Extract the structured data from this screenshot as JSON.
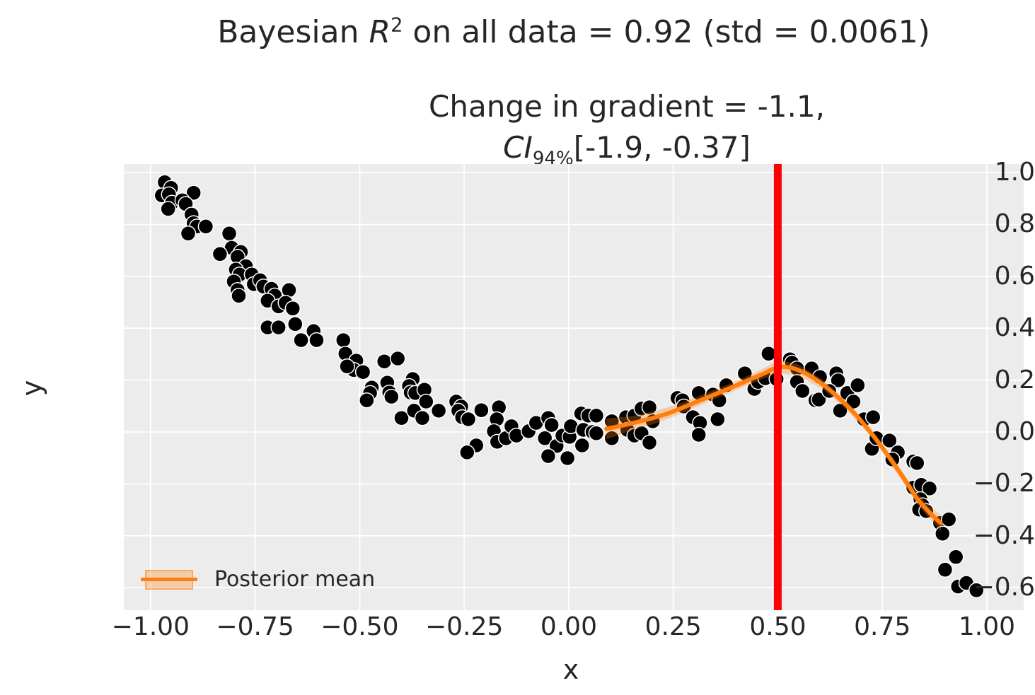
{
  "title": {
    "prefix": "Bayesian ",
    "r_symbol": "R",
    "r_sup": "2",
    "suffix": " on all data = 0.92 (std = 0.0061)"
  },
  "subtitle": {
    "line1": "Change in gradient = -1.1,",
    "ci_symbol": "CI",
    "ci_sub": "94%",
    "ci_range": "[-1.9, -0.37]"
  },
  "legend": {
    "posterior_mean_label": "Posterior mean"
  },
  "chart_data": {
    "type": "scatter",
    "title": "Bayesian R^2 on all data = 0.92 (std = 0.0061)",
    "subtitle": "Change in gradient = -1.1, CI_94% [-1.9, -0.37]",
    "xlabel": "x",
    "ylabel": "y",
    "xlim": [
      -1.064,
      1.088
    ],
    "ylim": [
      -0.687,
      1.033
    ],
    "grid": true,
    "plot_bg": "#ececec",
    "grid_color": "#ffffff",
    "text_color": "#262626",
    "xticks": {
      "values": [
        -1.0,
        -0.75,
        -0.5,
        -0.25,
        0.0,
        0.25,
        0.5,
        0.75,
        1.0
      ],
      "labels": [
        "−1.00",
        "−0.75",
        "−0.50",
        "−0.25",
        "0.00",
        "0.25",
        "0.50",
        "0.75",
        "1.00"
      ]
    },
    "yticks": {
      "values": [
        1.0,
        0.8,
        0.6,
        0.4,
        0.2,
        0.0,
        -0.2,
        -0.4,
        -0.6
      ],
      "labels": [
        "1.0",
        "0.8",
        "0.6",
        "0.4",
        "0.2",
        "0.0",
        "−0.2",
        "−0.4",
        "−0.6"
      ]
    },
    "vline": {
      "x": 0.5,
      "color": "#ff0000",
      "stroke_width": 11
    },
    "scatter": {
      "color": "#000000",
      "edge_color": "#ffffff",
      "radius": 10.5,
      "points": [
        [
          -0.966,
          0.963
        ],
        [
          -0.951,
          0.941
        ],
        [
          -0.973,
          0.912
        ],
        [
          -0.956,
          0.916
        ],
        [
          -0.897,
          0.922
        ],
        [
          -0.949,
          0.884
        ],
        [
          -0.924,
          0.893
        ],
        [
          -0.916,
          0.879
        ],
        [
          -0.958,
          0.86
        ],
        [
          -0.902,
          0.838
        ],
        [
          -0.897,
          0.805
        ],
        [
          -0.889,
          0.792
        ],
        [
          -0.868,
          0.792
        ],
        [
          -0.91,
          0.765
        ],
        [
          -0.812,
          0.765
        ],
        [
          -0.806,
          0.71
        ],
        [
          -0.784,
          0.694
        ],
        [
          -0.792,
          0.675
        ],
        [
          -0.834,
          0.686
        ],
        [
          -0.772,
          0.639
        ],
        [
          -0.796,
          0.626
        ],
        [
          -0.787,
          0.607
        ],
        [
          -0.758,
          0.607
        ],
        [
          -0.801,
          0.58
        ],
        [
          -0.753,
          0.57
        ],
        [
          -0.738,
          0.585
        ],
        [
          -0.73,
          0.561
        ],
        [
          -0.792,
          0.547
        ],
        [
          -0.789,
          0.525
        ],
        [
          -0.711,
          0.552
        ],
        [
          -0.703,
          0.526
        ],
        [
          -0.669,
          0.547
        ],
        [
          -0.72,
          0.506
        ],
        [
          -0.694,
          0.484
        ],
        [
          -0.677,
          0.498
        ],
        [
          -0.66,
          0.476
        ],
        [
          -0.72,
          0.403
        ],
        [
          -0.694,
          0.403
        ],
        [
          -0.654,
          0.416
        ],
        [
          -0.64,
          0.354
        ],
        [
          -0.61,
          0.389
        ],
        [
          -0.603,
          0.354
        ],
        [
          -0.539,
          0.354
        ],
        [
          -0.534,
          0.302
        ],
        [
          -0.508,
          0.275
        ],
        [
          -0.514,
          0.239
        ],
        [
          -0.492,
          0.231
        ],
        [
          -0.53,
          0.253
        ],
        [
          -0.441,
          0.272
        ],
        [
          -0.409,
          0.283
        ],
        [
          -0.471,
          0.171
        ],
        [
          -0.475,
          0.15
        ],
        [
          -0.483,
          0.122
        ],
        [
          -0.434,
          0.19
        ],
        [
          -0.429,
          0.152
        ],
        [
          -0.424,
          0.136
        ],
        [
          -0.373,
          0.204
        ],
        [
          -0.382,
          0.177
        ],
        [
          -0.378,
          0.152
        ],
        [
          -0.367,
          0.15
        ],
        [
          -0.345,
          0.163
        ],
        [
          -0.341,
          0.117
        ],
        [
          -0.4,
          0.054
        ],
        [
          -0.37,
          0.082
        ],
        [
          -0.35,
          0.054
        ],
        [
          -0.311,
          0.082
        ],
        [
          -0.269,
          0.117
        ],
        [
          -0.257,
          0.098
        ],
        [
          -0.264,
          0.082
        ],
        [
          -0.255,
          0.057
        ],
        [
          -0.24,
          0.049
        ],
        [
          -0.209,
          0.084
        ],
        [
          -0.167,
          0.095
        ],
        [
          -0.172,
          0.049
        ],
        [
          -0.179,
          0.003
        ],
        [
          -0.171,
          -0.038
        ],
        [
          -0.15,
          -0.024
        ],
        [
          -0.137,
          0.022
        ],
        [
          -0.125,
          -0.014
        ],
        [
          -0.221,
          -0.052
        ],
        [
          -0.243,
          -0.079
        ],
        [
          -0.096,
          0.003
        ],
        [
          -0.078,
          0.035
        ],
        [
          -0.057,
          -0.024
        ],
        [
          -0.049,
          0.054
        ],
        [
          -0.041,
          0.027
        ],
        [
          -0.029,
          -0.054
        ],
        [
          -0.049,
          -0.093
        ],
        [
          -0.003,
          -0.101
        ],
        [
          -0.015,
          -0.014
        ],
        [
          0.002,
          -0.019
        ],
        [
          0.005,
          0.022
        ],
        [
          0.03,
          0.071
        ],
        [
          0.047,
          0.063
        ],
        [
          0.035,
          0.008
        ],
        [
          0.057,
          0.0
        ],
        [
          0.032,
          -0.052
        ],
        [
          0.066,
          0.063
        ],
        [
          0.066,
          -0.005
        ],
        [
          0.103,
          0.041
        ],
        [
          0.103,
          -0.024
        ],
        [
          0.137,
          0.057
        ],
        [
          0.14,
          0.008
        ],
        [
          0.157,
          0.063
        ],
        [
          0.157,
          -0.014
        ],
        [
          0.174,
          0.09
        ],
        [
          0.174,
          -0.005
        ],
        [
          0.193,
          0.095
        ],
        [
          0.193,
          -0.041
        ],
        [
          0.201,
          0.041
        ],
        [
          0.26,
          0.131
        ],
        [
          0.272,
          0.122
        ],
        [
          0.275,
          0.098
        ],
        [
          0.297,
          0.057
        ],
        [
          0.311,
          0.15
        ],
        [
          0.314,
          0.035
        ],
        [
          0.311,
          -0.011
        ],
        [
          0.345,
          0.144
        ],
        [
          0.36,
          0.122
        ],
        [
          0.356,
          0.049
        ],
        [
          0.377,
          0.18
        ],
        [
          0.421,
          0.226
        ],
        [
          0.444,
          0.166
        ],
        [
          0.453,
          0.193
        ],
        [
          0.47,
          0.207
        ],
        [
          0.478,
          0.302
        ],
        [
          0.497,
          0.204
        ],
        [
          0.529,
          0.28
        ],
        [
          0.534,
          0.267
        ],
        [
          0.546,
          0.245
        ],
        [
          0.546,
          0.193
        ],
        [
          0.559,
          0.158
        ],
        [
          0.581,
          0.245
        ],
        [
          0.59,
          0.122
        ],
        [
          0.598,
          0.125
        ],
        [
          0.601,
          0.212
        ],
        [
          0.64,
          0.226
        ],
        [
          0.644,
          0.199
        ],
        [
          0.623,
          0.158
        ],
        [
          0.649,
          0.082
        ],
        [
          0.666,
          0.15
        ],
        [
          0.691,
          0.18
        ],
        [
          0.681,
          0.117
        ],
        [
          0.706,
          0.049
        ],
        [
          0.728,
          0.057
        ],
        [
          0.725,
          -0.065
        ],
        [
          0.736,
          -0.024
        ],
        [
          0.767,
          -0.033
        ],
        [
          0.787,
          -0.079
        ],
        [
          0.774,
          -0.106
        ],
        [
          0.824,
          -0.114
        ],
        [
          0.833,
          -0.12
        ],
        [
          0.824,
          -0.215
        ],
        [
          0.843,
          -0.204
        ],
        [
          0.863,
          -0.218
        ],
        [
          0.841,
          -0.259
        ],
        [
          0.846,
          -0.283
        ],
        [
          0.838,
          -0.299
        ],
        [
          0.855,
          -0.305
        ],
        [
          0.888,
          -0.351
        ],
        [
          0.909,
          -0.337
        ],
        [
          0.894,
          -0.392
        ],
        [
          0.926,
          -0.482
        ],
        [
          0.9,
          -0.531
        ],
        [
          0.931,
          -0.596
        ],
        [
          0.951,
          -0.582
        ],
        [
          0.975,
          -0.61
        ]
      ]
    },
    "posterior_mean": {
      "label": "Posterior mean",
      "color": "#ff7f0e",
      "stroke_width": 6,
      "points": [
        [
          0.09,
          0.012
        ],
        [
          0.12,
          0.022
        ],
        [
          0.15,
          0.033
        ],
        [
          0.18,
          0.045
        ],
        [
          0.21,
          0.058
        ],
        [
          0.24,
          0.073
        ],
        [
          0.27,
          0.092
        ],
        [
          0.3,
          0.112
        ],
        [
          0.33,
          0.132
        ],
        [
          0.36,
          0.152
        ],
        [
          0.39,
          0.172
        ],
        [
          0.42,
          0.193
        ],
        [
          0.45,
          0.214
        ],
        [
          0.47,
          0.228
        ],
        [
          0.49,
          0.243
        ],
        [
          0.51,
          0.251
        ],
        [
          0.53,
          0.248
        ],
        [
          0.55,
          0.238
        ],
        [
          0.57,
          0.223
        ],
        [
          0.59,
          0.203
        ],
        [
          0.61,
          0.18
        ],
        [
          0.63,
          0.154
        ],
        [
          0.65,
          0.125
        ],
        [
          0.67,
          0.094
        ],
        [
          0.69,
          0.06
        ],
        [
          0.71,
          0.022
        ],
        [
          0.73,
          -0.018
        ],
        [
          0.75,
          -0.06
        ],
        [
          0.77,
          -0.105
        ],
        [
          0.79,
          -0.152
        ],
        [
          0.81,
          -0.2
        ],
        [
          0.83,
          -0.25
        ],
        [
          0.85,
          -0.288
        ],
        [
          0.87,
          -0.322
        ],
        [
          0.89,
          -0.352
        ]
      ]
    },
    "ci_band": {
      "color": "#ff7f0e",
      "opacity": 0.3,
      "points": [
        {
          "x": 0.09,
          "lo": -0.028,
          "hi": 0.052
        },
        {
          "x": 0.15,
          "lo": 0.005,
          "hi": 0.061
        },
        {
          "x": 0.21,
          "lo": 0.034,
          "hi": 0.082
        },
        {
          "x": 0.27,
          "lo": 0.072,
          "hi": 0.112
        },
        {
          "x": 0.33,
          "lo": 0.114,
          "hi": 0.15
        },
        {
          "x": 0.39,
          "lo": 0.155,
          "hi": 0.189
        },
        {
          "x": 0.45,
          "lo": 0.196,
          "hi": 0.232
        },
        {
          "x": 0.49,
          "lo": 0.22,
          "hi": 0.266
        },
        {
          "x": 0.51,
          "lo": 0.226,
          "hi": 0.276
        },
        {
          "x": 0.55,
          "lo": 0.216,
          "hi": 0.26
        },
        {
          "x": 0.61,
          "lo": 0.162,
          "hi": 0.198
        },
        {
          "x": 0.67,
          "lo": 0.078,
          "hi": 0.11
        },
        {
          "x": 0.73,
          "lo": -0.034,
          "hi": -0.002
        },
        {
          "x": 0.79,
          "lo": -0.17,
          "hi": -0.134
        },
        {
          "x": 0.83,
          "lo": -0.271,
          "hi": -0.229
        },
        {
          "x": 0.86,
          "lo": -0.329,
          "hi": -0.281
        },
        {
          "x": 0.89,
          "lo": -0.383,
          "hi": -0.321
        }
      ]
    }
  }
}
